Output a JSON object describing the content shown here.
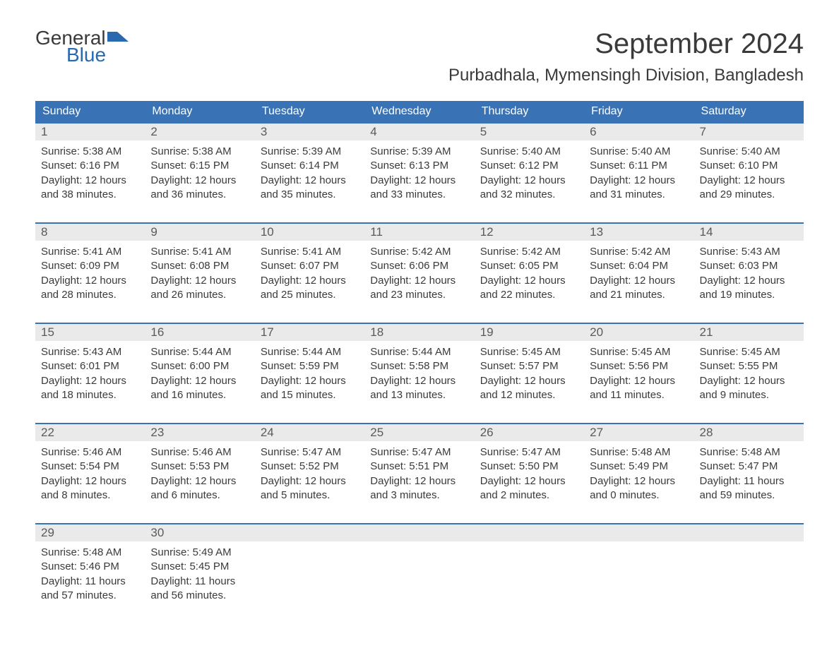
{
  "logo": {
    "text_general": "General",
    "text_blue": "Blue",
    "icon_color": "#2969b0"
  },
  "header": {
    "month_title": "September 2024",
    "location": "Purbadhala, Mymensingh Division, Bangladesh"
  },
  "colors": {
    "header_bg": "#3973b5",
    "header_text": "#ffffff",
    "day_number_bg": "#eaeaea",
    "border_color": "#3973b5",
    "text_color": "#3a3a3a",
    "background": "#ffffff"
  },
  "day_headers": [
    "Sunday",
    "Monday",
    "Tuesday",
    "Wednesday",
    "Thursday",
    "Friday",
    "Saturday"
  ],
  "weeks": [
    [
      {
        "day": "1",
        "sunrise": "Sunrise: 5:38 AM",
        "sunset": "Sunset: 6:16 PM",
        "daylight1": "Daylight: 12 hours",
        "daylight2": "and 38 minutes."
      },
      {
        "day": "2",
        "sunrise": "Sunrise: 5:38 AM",
        "sunset": "Sunset: 6:15 PM",
        "daylight1": "Daylight: 12 hours",
        "daylight2": "and 36 minutes."
      },
      {
        "day": "3",
        "sunrise": "Sunrise: 5:39 AM",
        "sunset": "Sunset: 6:14 PM",
        "daylight1": "Daylight: 12 hours",
        "daylight2": "and 35 minutes."
      },
      {
        "day": "4",
        "sunrise": "Sunrise: 5:39 AM",
        "sunset": "Sunset: 6:13 PM",
        "daylight1": "Daylight: 12 hours",
        "daylight2": "and 33 minutes."
      },
      {
        "day": "5",
        "sunrise": "Sunrise: 5:40 AM",
        "sunset": "Sunset: 6:12 PM",
        "daylight1": "Daylight: 12 hours",
        "daylight2": "and 32 minutes."
      },
      {
        "day": "6",
        "sunrise": "Sunrise: 5:40 AM",
        "sunset": "Sunset: 6:11 PM",
        "daylight1": "Daylight: 12 hours",
        "daylight2": "and 31 minutes."
      },
      {
        "day": "7",
        "sunrise": "Sunrise: 5:40 AM",
        "sunset": "Sunset: 6:10 PM",
        "daylight1": "Daylight: 12 hours",
        "daylight2": "and 29 minutes."
      }
    ],
    [
      {
        "day": "8",
        "sunrise": "Sunrise: 5:41 AM",
        "sunset": "Sunset: 6:09 PM",
        "daylight1": "Daylight: 12 hours",
        "daylight2": "and 28 minutes."
      },
      {
        "day": "9",
        "sunrise": "Sunrise: 5:41 AM",
        "sunset": "Sunset: 6:08 PM",
        "daylight1": "Daylight: 12 hours",
        "daylight2": "and 26 minutes."
      },
      {
        "day": "10",
        "sunrise": "Sunrise: 5:41 AM",
        "sunset": "Sunset: 6:07 PM",
        "daylight1": "Daylight: 12 hours",
        "daylight2": "and 25 minutes."
      },
      {
        "day": "11",
        "sunrise": "Sunrise: 5:42 AM",
        "sunset": "Sunset: 6:06 PM",
        "daylight1": "Daylight: 12 hours",
        "daylight2": "and 23 minutes."
      },
      {
        "day": "12",
        "sunrise": "Sunrise: 5:42 AM",
        "sunset": "Sunset: 6:05 PM",
        "daylight1": "Daylight: 12 hours",
        "daylight2": "and 22 minutes."
      },
      {
        "day": "13",
        "sunrise": "Sunrise: 5:42 AM",
        "sunset": "Sunset: 6:04 PM",
        "daylight1": "Daylight: 12 hours",
        "daylight2": "and 21 minutes."
      },
      {
        "day": "14",
        "sunrise": "Sunrise: 5:43 AM",
        "sunset": "Sunset: 6:03 PM",
        "daylight1": "Daylight: 12 hours",
        "daylight2": "and 19 minutes."
      }
    ],
    [
      {
        "day": "15",
        "sunrise": "Sunrise: 5:43 AM",
        "sunset": "Sunset: 6:01 PM",
        "daylight1": "Daylight: 12 hours",
        "daylight2": "and 18 minutes."
      },
      {
        "day": "16",
        "sunrise": "Sunrise: 5:44 AM",
        "sunset": "Sunset: 6:00 PM",
        "daylight1": "Daylight: 12 hours",
        "daylight2": "and 16 minutes."
      },
      {
        "day": "17",
        "sunrise": "Sunrise: 5:44 AM",
        "sunset": "Sunset: 5:59 PM",
        "daylight1": "Daylight: 12 hours",
        "daylight2": "and 15 minutes."
      },
      {
        "day": "18",
        "sunrise": "Sunrise: 5:44 AM",
        "sunset": "Sunset: 5:58 PM",
        "daylight1": "Daylight: 12 hours",
        "daylight2": "and 13 minutes."
      },
      {
        "day": "19",
        "sunrise": "Sunrise: 5:45 AM",
        "sunset": "Sunset: 5:57 PM",
        "daylight1": "Daylight: 12 hours",
        "daylight2": "and 12 minutes."
      },
      {
        "day": "20",
        "sunrise": "Sunrise: 5:45 AM",
        "sunset": "Sunset: 5:56 PM",
        "daylight1": "Daylight: 12 hours",
        "daylight2": "and 11 minutes."
      },
      {
        "day": "21",
        "sunrise": "Sunrise: 5:45 AM",
        "sunset": "Sunset: 5:55 PM",
        "daylight1": "Daylight: 12 hours",
        "daylight2": "and 9 minutes."
      }
    ],
    [
      {
        "day": "22",
        "sunrise": "Sunrise: 5:46 AM",
        "sunset": "Sunset: 5:54 PM",
        "daylight1": "Daylight: 12 hours",
        "daylight2": "and 8 minutes."
      },
      {
        "day": "23",
        "sunrise": "Sunrise: 5:46 AM",
        "sunset": "Sunset: 5:53 PM",
        "daylight1": "Daylight: 12 hours",
        "daylight2": "and 6 minutes."
      },
      {
        "day": "24",
        "sunrise": "Sunrise: 5:47 AM",
        "sunset": "Sunset: 5:52 PM",
        "daylight1": "Daylight: 12 hours",
        "daylight2": "and 5 minutes."
      },
      {
        "day": "25",
        "sunrise": "Sunrise: 5:47 AM",
        "sunset": "Sunset: 5:51 PM",
        "daylight1": "Daylight: 12 hours",
        "daylight2": "and 3 minutes."
      },
      {
        "day": "26",
        "sunrise": "Sunrise: 5:47 AM",
        "sunset": "Sunset: 5:50 PM",
        "daylight1": "Daylight: 12 hours",
        "daylight2": "and 2 minutes."
      },
      {
        "day": "27",
        "sunrise": "Sunrise: 5:48 AM",
        "sunset": "Sunset: 5:49 PM",
        "daylight1": "Daylight: 12 hours",
        "daylight2": "and 0 minutes."
      },
      {
        "day": "28",
        "sunrise": "Sunrise: 5:48 AM",
        "sunset": "Sunset: 5:47 PM",
        "daylight1": "Daylight: 11 hours",
        "daylight2": "and 59 minutes."
      }
    ],
    [
      {
        "day": "29",
        "sunrise": "Sunrise: 5:48 AM",
        "sunset": "Sunset: 5:46 PM",
        "daylight1": "Daylight: 11 hours",
        "daylight2": "and 57 minutes."
      },
      {
        "day": "30",
        "sunrise": "Sunrise: 5:49 AM",
        "sunset": "Sunset: 5:45 PM",
        "daylight1": "Daylight: 11 hours",
        "daylight2": "and 56 minutes."
      },
      null,
      null,
      null,
      null,
      null
    ]
  ]
}
